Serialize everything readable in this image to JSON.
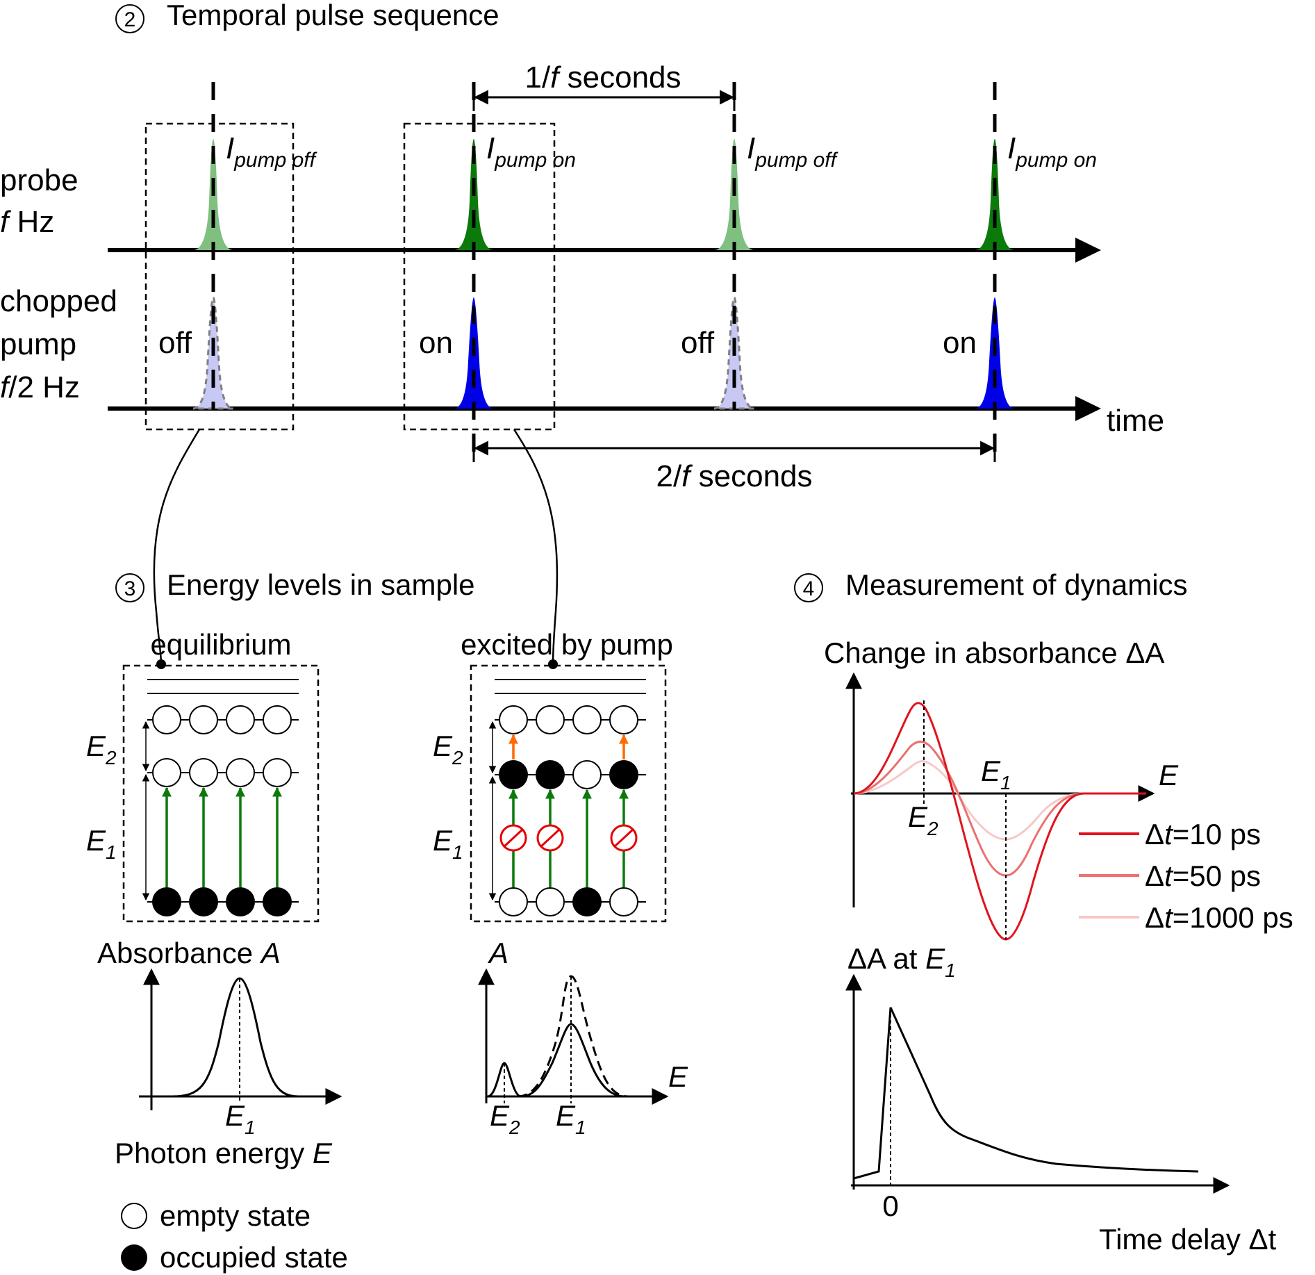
{
  "section2": {
    "number": "2",
    "title": "Temporal pulse sequence",
    "probe_label_line1": "probe",
    "probe_label_f": "f",
    "probe_label_hz": " Hz",
    "pump_label_line1": "chopped",
    "pump_label_line2": "pump",
    "pump_label_f": "f",
    "pump_label_hz": "/2 Hz",
    "time_label": "time",
    "period1_f": "f",
    "period1_pre": "1/",
    "period1_post": " seconds",
    "period2_f": "f",
    "period2_pre": "2/",
    "period2_post": " seconds",
    "intensity_symbol": "I",
    "pulse_subscripts": [
      "pump off",
      "pump on",
      "pump off",
      "pump on"
    ],
    "pump_states": [
      "off",
      "on",
      "off",
      "on"
    ],
    "colors": {
      "probe_light": "#7fbf7f",
      "probe_dark": "#0b7a0b",
      "pump_light": "#c8c8f5",
      "pump_dark": "#0000e6"
    }
  },
  "section3": {
    "number": "3",
    "title": "Energy levels in sample",
    "left_box_title": "equilibrium",
    "right_box_title": "excited by pump",
    "energy_symbol": "E",
    "e1_sub": "1",
    "e2_sub": "2",
    "left_absorbance_title_pre": "Absorbance ",
    "left_absorbance_title_sym": "A",
    "right_absorbance_title": "A",
    "x_axis_label_pre": "Photon energy ",
    "x_axis_label_sym": "E",
    "right_axis_E": "E",
    "legend_empty": "empty state",
    "legend_occupied": "occupied state",
    "arrow_colors": {
      "excitation": "#0b7a0b",
      "upper": "#ff6a00",
      "blocked": "#e60000"
    }
  },
  "section4": {
    "number": "4",
    "title": "Measurement of dynamics",
    "top_plot_title": "Change in absorbance ΔA",
    "top_plot_x": "E",
    "bottom_plot_title_pre": "ΔA at ",
    "bottom_plot_title_sym": "E",
    "bottom_plot_title_sub": "1",
    "bottom_plot_xlabel": "Time delay Δt",
    "bottom_plot_zero": "0",
    "legend": [
      {
        "label_pre": "Δ",
        "label_sym": "t",
        "label_post": "=10 ps",
        "color": "#e0141e"
      },
      {
        "label_pre": "Δ",
        "label_sym": "t",
        "label_post": "=50 ps",
        "color": "#ec7070"
      },
      {
        "label_pre": "Δ",
        "label_sym": "t",
        "label_post": "=1000 ps",
        "color": "#f7c8c8"
      }
    ]
  }
}
